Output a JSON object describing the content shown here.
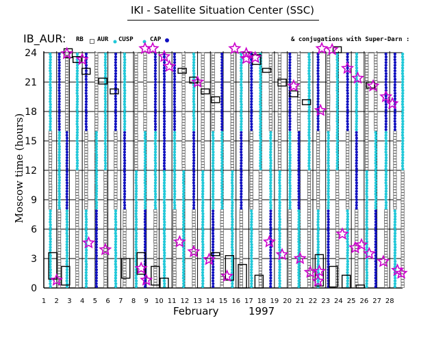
{
  "header": {
    "title": "IKI - Satellite Situation Center (SSC)",
    "station": "IB_AUR:"
  },
  "legend": {
    "rb": "RB",
    "aur": "AUR",
    "cusp": "CUSP",
    "cap": "CAP",
    "conjugations": "& conjugations with Super-Darn :"
  },
  "colors": {
    "rb": "#666666",
    "cusp": "#22c8d8",
    "cap": "#1010c0",
    "star": "#cc00cc",
    "grid": "#000000"
  },
  "chart_data": {
    "type": "scatter",
    "title": "IKI - Satellite Situation Center (SSC)",
    "xlabel": "February      1997",
    "month": "February",
    "year": "1997",
    "ylabel": "Moscow time (hours)",
    "xlim": [
      1,
      29
    ],
    "ylim": [
      0,
      24
    ],
    "yticks": [
      0,
      3,
      6,
      9,
      12,
      15,
      18,
      21,
      24
    ],
    "xticks": [
      1,
      2,
      3,
      4,
      5,
      6,
      7,
      8,
      9,
      10,
      11,
      12,
      13,
      14,
      15,
      16,
      17,
      18,
      19,
      20,
      21,
      22,
      23,
      24,
      25,
      26,
      27,
      28
    ],
    "grid": true,
    "series_types": [
      "RB",
      "AUR",
      "CUSP",
      "CAP"
    ],
    "satellite_passes": [
      {
        "day": 1.5,
        "types": [
          "CUSP",
          "RB",
          "CUSP"
        ]
      },
      {
        "day": 2.2,
        "types": [
          "RB",
          "CUSP",
          "CAP"
        ]
      },
      {
        "day": 2.8,
        "types": [
          "CUSP",
          "CAP",
          "RB"
        ]
      },
      {
        "day": 3.6,
        "types": [
          "RB",
          "CUSP"
        ]
      },
      {
        "day": 4.3,
        "types": [
          "CUSP",
          "RB",
          "CAP"
        ]
      },
      {
        "day": 5.1,
        "types": [
          "CAP",
          "CUSP",
          "RB"
        ]
      },
      {
        "day": 5.8,
        "types": [
          "RB",
          "CUSP"
        ]
      },
      {
        "day": 6.6,
        "types": [
          "CUSP",
          "RB",
          "CAP"
        ]
      },
      {
        "day": 7.3,
        "types": [
          "RB",
          "CAP",
          "CUSP"
        ]
      },
      {
        "day": 8.2,
        "types": [
          "CUSP",
          "RB"
        ]
      },
      {
        "day": 8.9,
        "types": [
          "CAP",
          "CUSP",
          "RB"
        ]
      },
      {
        "day": 9.7,
        "types": [
          "RB",
          "CUSP",
          "CAP"
        ]
      },
      {
        "day": 10.4,
        "types": [
          "CUSP",
          "CAP"
        ]
      },
      {
        "day": 11.2,
        "types": [
          "RB",
          "CUSP",
          "CAP"
        ]
      },
      {
        "day": 11.9,
        "types": [
          "CUSP",
          "RB"
        ]
      },
      {
        "day": 12.7,
        "types": [
          "RB",
          "CAP",
          "CUSP"
        ]
      },
      {
        "day": 13.4,
        "types": [
          "CUSP",
          "RB"
        ]
      },
      {
        "day": 14.2,
        "types": [
          "CAP",
          "CUSP",
          "RB"
        ]
      },
      {
        "day": 14.9,
        "types": [
          "RB",
          "CUSP",
          "CAP"
        ]
      },
      {
        "day": 15.7,
        "types": [
          "CUSP",
          "RB"
        ]
      },
      {
        "day": 16.4,
        "types": [
          "RB",
          "CAP",
          "CUSP"
        ]
      },
      {
        "day": 17.2,
        "types": [
          "CUSP",
          "RB",
          "CAP"
        ]
      },
      {
        "day": 17.9,
        "types": [
          "RB",
          "CUSP"
        ]
      },
      {
        "day": 18.7,
        "types": [
          "CAP",
          "CUSP",
          "RB"
        ]
      },
      {
        "day": 19.4,
        "types": [
          "CUSP",
          "RB"
        ]
      },
      {
        "day": 20.2,
        "types": [
          "RB",
          "CUSP",
          "CAP"
        ]
      },
      {
        "day": 20.9,
        "types": [
          "CUSP",
          "CAP",
          "RB"
        ]
      },
      {
        "day": 21.7,
        "types": [
          "RB",
          "CUSP"
        ]
      },
      {
        "day": 22.4,
        "types": [
          "CUSP",
          "RB",
          "CAP"
        ]
      },
      {
        "day": 23.2,
        "types": [
          "CAP",
          "CUSP",
          "RB"
        ]
      },
      {
        "day": 23.9,
        "types": [
          "RB",
          "CUSP"
        ]
      },
      {
        "day": 24.7,
        "types": [
          "CUSP",
          "RB",
          "CAP"
        ]
      },
      {
        "day": 25.4,
        "types": [
          "RB",
          "CAP",
          "CUSP"
        ]
      },
      {
        "day": 26.2,
        "types": [
          "CUSP",
          "RB"
        ]
      },
      {
        "day": 26.9,
        "types": [
          "CAP",
          "CUSP",
          "RB"
        ]
      },
      {
        "day": 27.7,
        "types": [
          "RB",
          "CUSP",
          "CAP"
        ]
      },
      {
        "day": 28.4,
        "types": [
          "CUSP",
          "RB",
          "CAP"
        ]
      },
      {
        "day": 29.0,
        "types": [
          "RB",
          "CUSP"
        ]
      }
    ],
    "conjugation_boxes": [
      {
        "day": 1.7,
        "from": 0.9,
        "to": 3.6
      },
      {
        "day": 2.7,
        "from": 0.3,
        "to": 2.2
      },
      {
        "day": 2.9,
        "from": 23.5,
        "to": 24.4
      },
      {
        "day": 3.6,
        "from": 23.0,
        "to": 23.6
      },
      {
        "day": 4.3,
        "from": 21.8,
        "to": 22.4
      },
      {
        "day": 5.6,
        "from": 20.8,
        "to": 21.4
      },
      {
        "day": 6.5,
        "from": 19.8,
        "to": 20.3
      },
      {
        "day": 7.4,
        "from": 1.0,
        "to": 3.0
      },
      {
        "day": 8.6,
        "from": 1.4,
        "to": 3.6
      },
      {
        "day": 9.7,
        "from": 0.3,
        "to": 2.2
      },
      {
        "day": 10.4,
        "from": 0.0,
        "to": 1.0
      },
      {
        "day": 11.8,
        "from": 21.9,
        "to": 22.4
      },
      {
        "day": 12.7,
        "from": 20.9,
        "to": 21.5
      },
      {
        "day": 13.6,
        "from": 19.8,
        "to": 20.3
      },
      {
        "day": 14.4,
        "from": 18.9,
        "to": 19.5
      },
      {
        "day": 14.4,
        "from": 3.3,
        "to": 3.6
      },
      {
        "day": 15.5,
        "from": 0.8,
        "to": 3.3
      },
      {
        "day": 16.5,
        "from": 0.0,
        "to": 2.4
      },
      {
        "day": 17.8,
        "from": 0.0,
        "to": 1.3
      },
      {
        "day": 17.6,
        "from": 22.8,
        "to": 23.8
      },
      {
        "day": 18.4,
        "from": 22.0,
        "to": 22.4
      },
      {
        "day": 19.6,
        "from": 20.6,
        "to": 21.3
      },
      {
        "day": 20.5,
        "from": 19.5,
        "to": 20.1
      },
      {
        "day": 21.5,
        "from": 18.7,
        "to": 19.2
      },
      {
        "day": 22.5,
        "from": 0.2,
        "to": 3.4
      },
      {
        "day": 23.6,
        "from": 0.1,
        "to": 2.2
      },
      {
        "day": 23.9,
        "from": 24.0,
        "to": 24.6
      },
      {
        "day": 24.6,
        "from": 0.0,
        "to": 1.3
      },
      {
        "day": 25.7,
        "from": 0.0,
        "to": 0.3
      },
      {
        "day": 26.5,
        "from": 20.4,
        "to": 21.0
      }
    ],
    "super_darn_conjugations": [
      {
        "day": 2.0,
        "hour": 0.8
      },
      {
        "day": 2.8,
        "hour": 23.9
      },
      {
        "day": 4.0,
        "hour": 23.3
      },
      {
        "day": 4.5,
        "hour": 4.6
      },
      {
        "day": 5.8,
        "hour": 3.9
      },
      {
        "day": 8.6,
        "hour": 2.0
      },
      {
        "day": 9.0,
        "hour": 0.8
      },
      {
        "day": 8.9,
        "hour": 25.0
      },
      {
        "day": 9.5,
        "hour": 24.6
      },
      {
        "day": 10.4,
        "hour": 23.6
      },
      {
        "day": 10.8,
        "hour": 22.6
      },
      {
        "day": 11.6,
        "hour": 4.7
      },
      {
        "day": 12.7,
        "hour": 3.7
      },
      {
        "day": 13.9,
        "hour": 2.9
      },
      {
        "day": 13.0,
        "hour": 21.0
      },
      {
        "day": 15.3,
        "hour": 1.2
      },
      {
        "day": 15.9,
        "hour": 24.9
      },
      {
        "day": 16.8,
        "hour": 23.9
      },
      {
        "day": 16.8,
        "hour": 23.4
      },
      {
        "day": 17.5,
        "hour": 23.5
      },
      {
        "day": 18.6,
        "hour": 4.7
      },
      {
        "day": 19.6,
        "hour": 3.4
      },
      {
        "day": 20.5,
        "hour": 20.6
      },
      {
        "day": 21.0,
        "hour": 3.0
      },
      {
        "day": 21.8,
        "hour": 1.6
      },
      {
        "day": 22.4,
        "hour": 0.7
      },
      {
        "day": 22.6,
        "hour": 18.1
      },
      {
        "day": 22.7,
        "hour": 24.8
      },
      {
        "day": 22.5,
        "hour": 1.7
      },
      {
        "day": 23.5,
        "hour": 24.3
      },
      {
        "day": 24.3,
        "hour": 5.5
      },
      {
        "day": 24.7,
        "hour": 22.4
      },
      {
        "day": 25.5,
        "hour": 21.4
      },
      {
        "day": 25.8,
        "hour": 4.4
      },
      {
        "day": 25.3,
        "hour": 4.1
      },
      {
        "day": 26.4,
        "hour": 3.5
      },
      {
        "day": 26.7,
        "hour": 20.6
      },
      {
        "day": 27.5,
        "hour": 2.7
      },
      {
        "day": 27.7,
        "hour": 19.5
      },
      {
        "day": 28.6,
        "hour": 1.8
      },
      {
        "day": 28.2,
        "hour": 18.8
      },
      {
        "day": 28.9,
        "hour": 1.5
      }
    ]
  }
}
